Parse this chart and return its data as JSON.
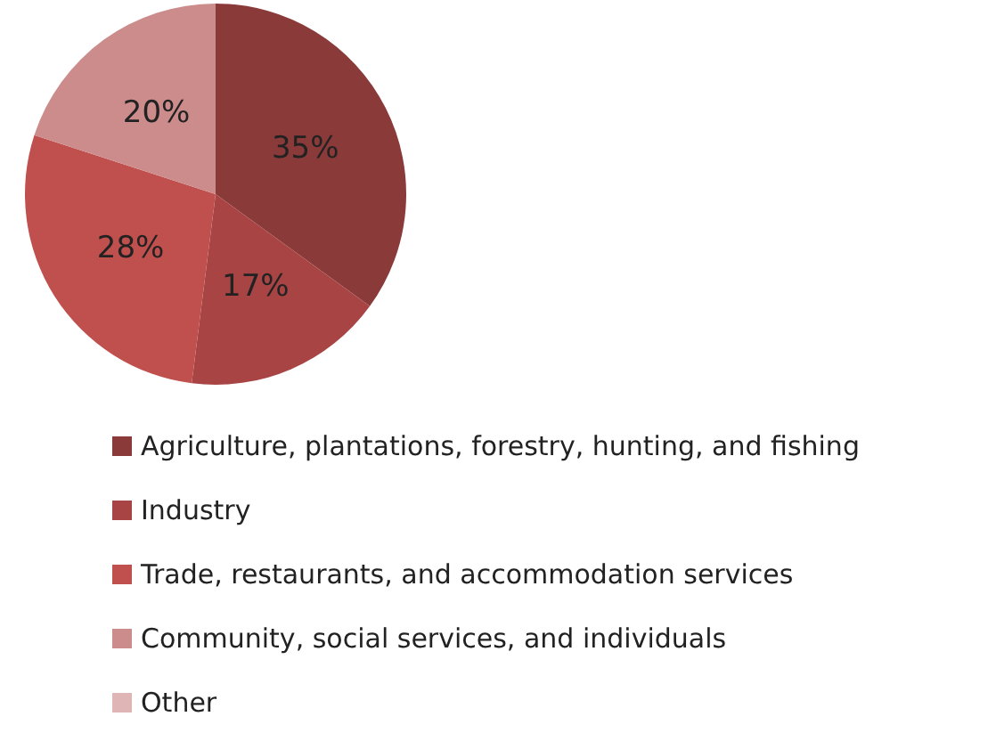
{
  "chart_data": {
    "type": "pie",
    "categories": [
      "Agriculture, plantations, forestry, hunting, and fishing",
      "Industry",
      "Trade, restaurants, and accommodation services",
      "Community, social services, and individuals",
      "Other"
    ],
    "values": [
      35,
      17,
      28,
      20,
      0
    ],
    "colors": [
      "#8b3a3a",
      "#a84444",
      "#c0504d",
      "#cc8c8c",
      "#dfb5b5"
    ],
    "value_labels": [
      "35%",
      "17%",
      "28%",
      "20%",
      null
    ],
    "legend": "bottom"
  }
}
